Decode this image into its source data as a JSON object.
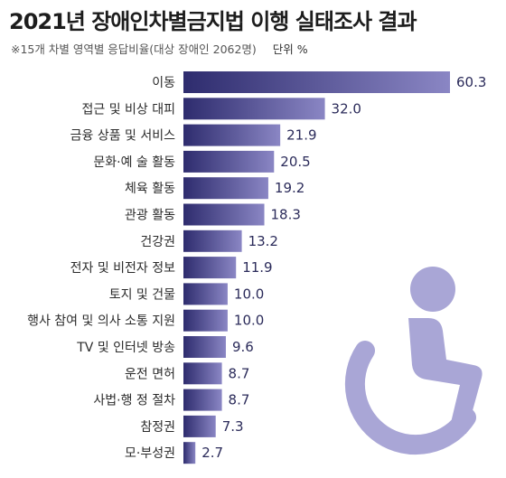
{
  "header": {
    "title": "2021년 장애인차별금지법 이행 실태조사 결과",
    "subtitle": "※15개 차별 영역별 응답비율(대상 장애인 2062명)",
    "unit": "단위 %"
  },
  "colors": {
    "bar_start": "#2e2c6e",
    "bar_end": "#8a86c4",
    "icon": "#a9a6d6"
  },
  "icon": "wheelchair-icon",
  "chart_data": {
    "type": "bar",
    "orientation": "horizontal",
    "categories": [
      "이동",
      "접근 및 비상 대피",
      "금융 상품 및 서비스",
      "문화·예 술 활동",
      "체육 활동",
      "관광 활동",
      "건강권",
      "전자 및 비전자 정보",
      "토지 및 건물",
      "행사 참여 및 의사 소통 지원",
      "TV 및 인터넷 방송",
      "운전 면허",
      "사법·행 정 절차",
      "참정권",
      "모·부성권"
    ],
    "values": [
      60.3,
      32.0,
      21.9,
      20.5,
      19.2,
      18.3,
      13.2,
      11.9,
      10.0,
      10.0,
      9.6,
      8.7,
      8.7,
      7.3,
      2.7
    ],
    "value_labels": [
      "60.3",
      "32.0",
      "21.9",
      "20.5",
      "19.2",
      "18.3",
      "13.2",
      "11.9",
      "10.0",
      "10.0",
      "9.6",
      "8.7",
      "8.7",
      "7.3",
      "2.7"
    ],
    "xlim": [
      0,
      60.3
    ],
    "grid": false,
    "legend": "none"
  }
}
